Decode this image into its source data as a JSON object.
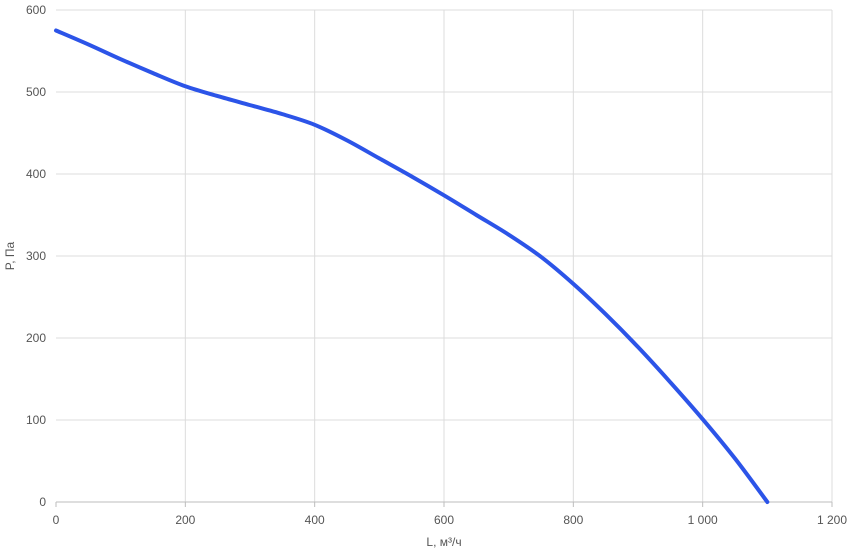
{
  "chart_data": {
    "type": "line",
    "title": "",
    "xlabel": "L, м³/ч",
    "ylabel": "P, Па",
    "xlim": [
      0,
      1200
    ],
    "ylim": [
      0,
      600
    ],
    "x_ticks": [
      0,
      200,
      400,
      600,
      800,
      1000,
      1200
    ],
    "x_tick_labels": [
      "0",
      "200",
      "400",
      "600",
      "800",
      "1 000",
      "1 200"
    ],
    "y_ticks": [
      0,
      100,
      200,
      300,
      400,
      500,
      600
    ],
    "y_tick_labels": [
      "0",
      "100",
      "200",
      "300",
      "400",
      "500",
      "600"
    ],
    "grid": true,
    "legend": "none",
    "series": [
      {
        "color": "#2c54e8",
        "x": [
          0,
          50,
          100,
          150,
          200,
          250,
          300,
          350,
          400,
          450,
          500,
          550,
          600,
          650,
          700,
          750,
          800,
          850,
          900,
          950,
          1000,
          1050,
          1100
        ],
        "y": [
          575,
          558,
          540,
          523,
          507,
          495,
          484,
          473,
          460,
          441,
          419,
          397,
          374,
          350,
          326,
          299,
          266,
          229,
          189,
          146,
          101,
          53,
          0
        ]
      }
    ]
  }
}
